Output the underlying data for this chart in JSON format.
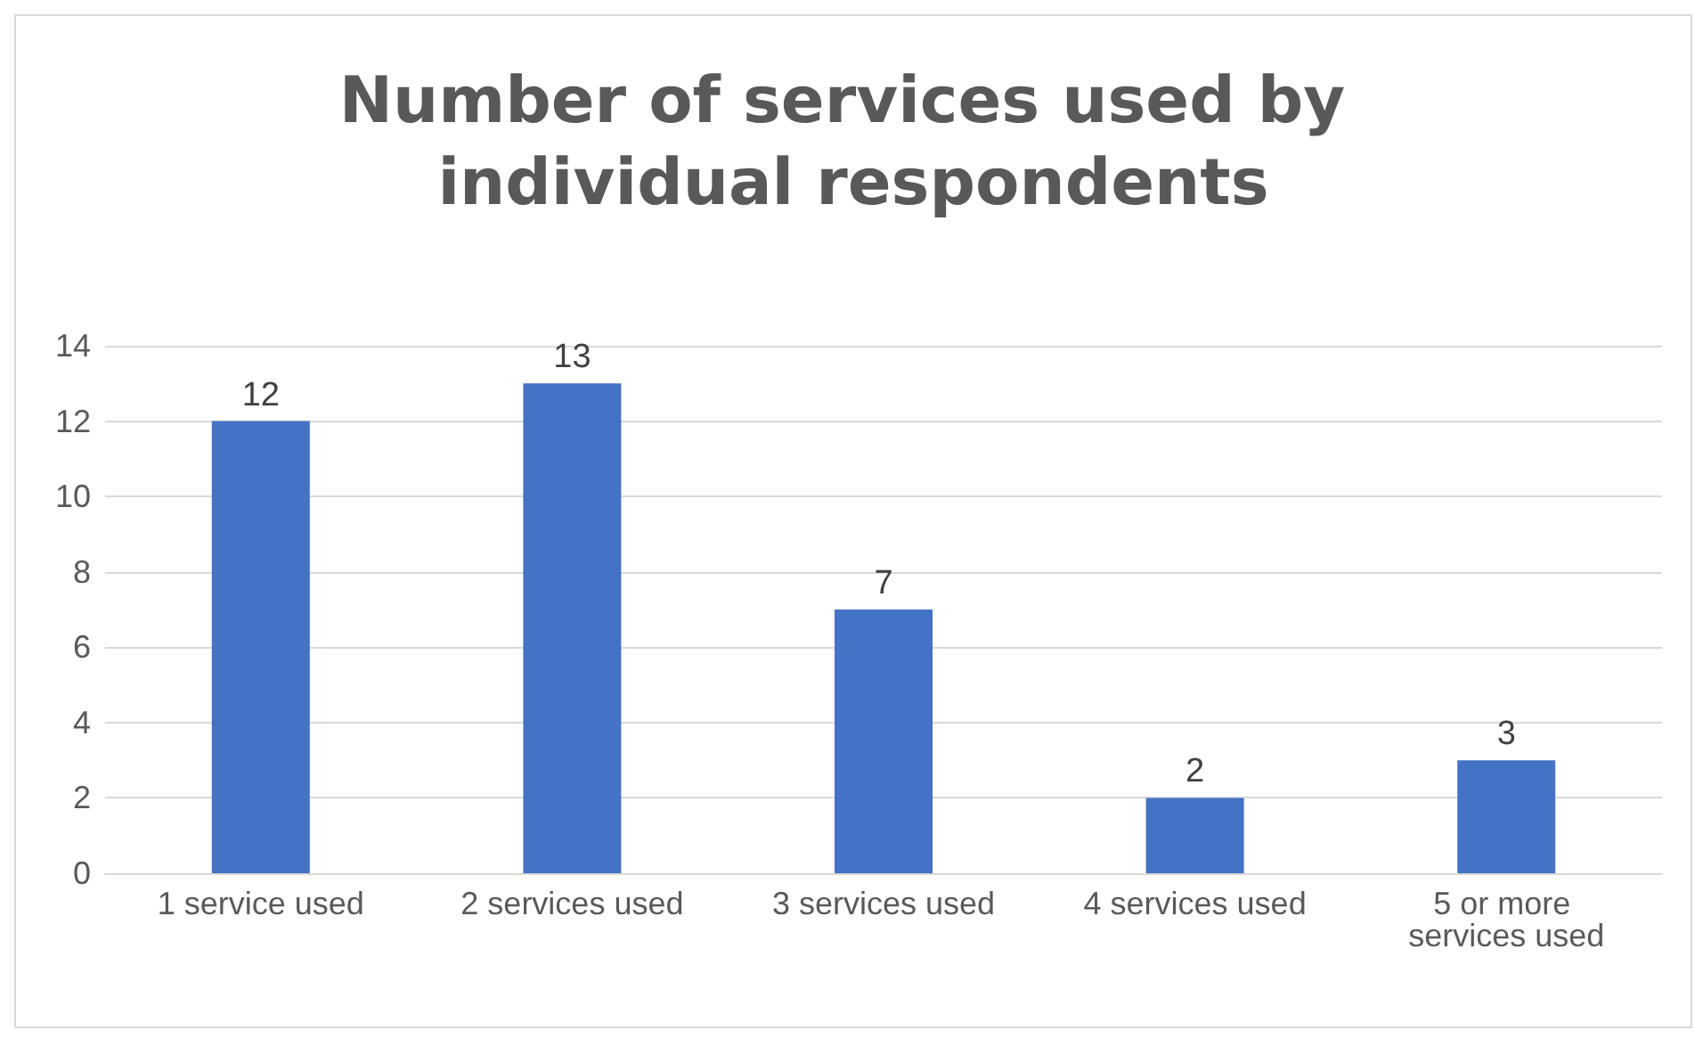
{
  "chart_data": {
    "type": "bar",
    "title": "Number of services used by individual respondents",
    "categories": [
      "1 service used",
      "2 services used",
      "3 services used",
      "4 services used",
      "5 or more services used"
    ],
    "values": [
      12,
      13,
      7,
      2,
      3
    ],
    "color": "#4472c4",
    "ylim": [
      0,
      14
    ],
    "yticks": [
      0,
      2,
      4,
      6,
      8,
      10,
      12,
      14
    ],
    "grid": "y",
    "data_labels": true
  }
}
